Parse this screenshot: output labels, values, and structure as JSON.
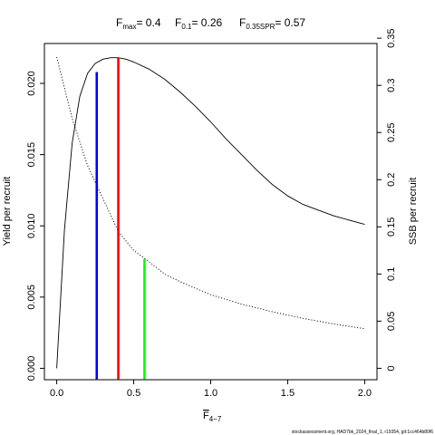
{
  "chart_data": {
    "type": "line",
    "title": {
      "fmax_label": "F",
      "fmax_sub": "max",
      "fmax_value": "= 0.4",
      "f01_label": "F",
      "f01_sub": "0.1",
      "f01_value": "= 0.26",
      "fspr_label": "F",
      "fspr_sub": "0.35SPR",
      "fspr_value": "= 0.57"
    },
    "xlabel": {
      "main": "F",
      "sub": "4−7"
    },
    "ylabel_left": "Yield per recruit",
    "ylabel_right": "SSB per recruit",
    "xlim": [
      -0.08,
      2.08
    ],
    "ylim_left": [
      -0.0008,
      0.0228
    ],
    "ylim_right": [
      -0.0121,
      0.3444
    ],
    "x_ticks": [
      0,
      0.5,
      1.0,
      1.5,
      2.0
    ],
    "x_tick_labels": [
      "0.0",
      "0.5",
      "1.0",
      "1.5",
      "2.0"
    ],
    "y_left_ticks": [
      0,
      0.005,
      0.01,
      0.015,
      0.02
    ],
    "y_left_tick_labels": [
      "0.000",
      "0.005",
      "0.010",
      "0.015",
      "0.020"
    ],
    "y_right_ticks": [
      0,
      0.05,
      0.1,
      0.15,
      0.2,
      0.25,
      0.3,
      0.35
    ],
    "y_right_tick_labels": [
      "0",
      "0.05",
      "0.1",
      "0.15",
      "0.2",
      "0.25",
      "0.3",
      "0.35"
    ],
    "series": [
      {
        "axis": "left",
        "style": "solid",
        "x": [
          0,
          0.05,
          0.1,
          0.15,
          0.2,
          0.25,
          0.3,
          0.35,
          0.4,
          0.45,
          0.5,
          0.6,
          0.7,
          0.8,
          0.9,
          1.0,
          1.1,
          1.2,
          1.3,
          1.4,
          1.5,
          1.6,
          1.7,
          1.8,
          1.9,
          2.0
        ],
        "y": [
          0,
          0.0097,
          0.0158,
          0.0191,
          0.0207,
          0.0214,
          0.0217,
          0.0218,
          0.0218,
          0.0217,
          0.0215,
          0.021,
          0.0203,
          0.0194,
          0.0184,
          0.0173,
          0.0161,
          0.015,
          0.0139,
          0.0129,
          0.0121,
          0.0115,
          0.0111,
          0.0107,
          0.0104,
          0.0101
        ]
      },
      {
        "axis": "right",
        "style": "dotted",
        "x": [
          0,
          0.1,
          0.2,
          0.3,
          0.4,
          0.5,
          0.6,
          0.7,
          0.8,
          0.9,
          1.0,
          1.2,
          1.4,
          1.6,
          1.8,
          2.0
        ],
        "y": [
          0.33,
          0.265,
          0.215,
          0.18,
          0.145,
          0.125,
          0.113,
          0.1,
          0.092,
          0.085,
          0.078,
          0.068,
          0.06,
          0.053,
          0.047,
          0.042
        ]
      }
    ],
    "reference_lines": [
      {
        "name": "F0.1",
        "x": 0.26,
        "color": "#0000ff",
        "axis": "left",
        "top": 0.0208
      },
      {
        "name": "Fmax",
        "x": 0.4,
        "color": "#ff0000",
        "axis": "left",
        "top": 0.0218
      },
      {
        "name": "F0.35SPR",
        "x": 0.57,
        "color": "#00ff00",
        "axis": "right",
        "top": 0.116
      }
    ]
  },
  "footer": "stockassessment.org, HAD7bk_2024_final_1, r19354, git:1cc464b80f6"
}
